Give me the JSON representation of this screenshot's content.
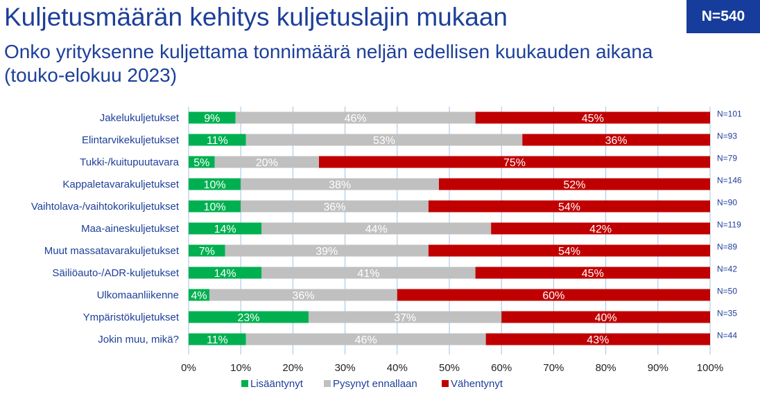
{
  "header": {
    "title": "Kuljetusmäärän kehitys kuljetuslajin mukaan",
    "subtitle": "Onko yrityksenne kuljettama tonnimäärä neljän edellisen kuukauden aikana (touko-elokuu 2023)",
    "n_total": "N=540"
  },
  "colors": {
    "title": "#1d3f9a",
    "badge_bg": "#163d9c",
    "increased": "#00b050",
    "unchanged": "#c0c0c0",
    "decreased": "#c00000",
    "gridline": "#9dc3e6"
  },
  "chart_data": {
    "type": "bar",
    "orientation": "horizontal",
    "stacked": "100%",
    "categories": [
      "Jakelukuljetukset",
      "Elintarvikekuljetukset",
      "Tukki-/kuitupuutavara",
      "Kappaletavarakuljetukset",
      "Vaihtolava-/vaihtokorikuljetukset",
      "Maa-aineskuljetukset",
      "Muut massatavarakuljetukset",
      "Säiliöauto-/ADR-kuljetukset",
      "Ulkomaanliikenne",
      "Ympäristökuljetukset",
      "Jokin muu, mikä?"
    ],
    "n_labels": [
      "N=101",
      "N=93",
      "N=79",
      "N=146",
      "N=90",
      "N=119",
      "N=89",
      "N=42",
      "N=50",
      "N=35",
      "N=44"
    ],
    "series": [
      {
        "name": "Lisääntynyt",
        "color": "#00b050",
        "values": [
          9,
          11,
          5,
          10,
          10,
          14,
          7,
          14,
          4,
          23,
          11
        ]
      },
      {
        "name": "Pysynyt ennallaan",
        "color": "#c0c0c0",
        "values": [
          46,
          53,
          20,
          38,
          36,
          44,
          39,
          41,
          36,
          37,
          46
        ]
      },
      {
        "name": "Vähentynyt",
        "color": "#c00000",
        "values": [
          45,
          36,
          75,
          52,
          54,
          42,
          54,
          45,
          60,
          40,
          43
        ]
      }
    ],
    "xlim": [
      0,
      100
    ],
    "xticks": [
      0,
      10,
      20,
      30,
      40,
      50,
      60,
      70,
      80,
      90,
      100
    ],
    "tick_suffix": "%",
    "data_label_suffix": "%",
    "grid": true,
    "legend": "bottom"
  }
}
